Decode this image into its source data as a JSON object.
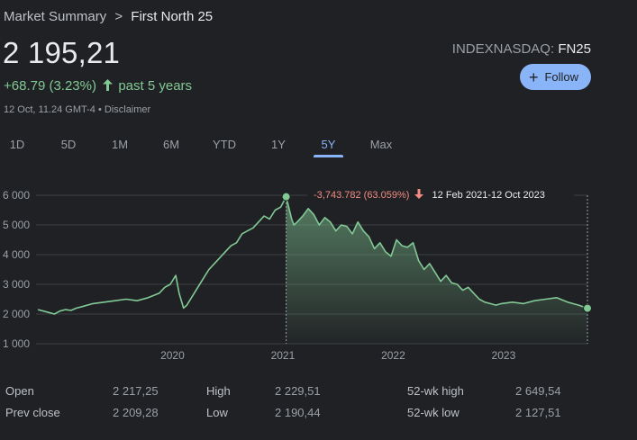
{
  "breadcrumb": {
    "parent": "Market Summary",
    "separator": ">",
    "current": "First North 25"
  },
  "quote": {
    "price": "2 195,21",
    "change": "+68.79 (3.23%)",
    "period": "past 5 years",
    "timestamp": "12 Oct, 11.24 GMT-4 • Disclaimer",
    "exchange": "INDEXNASDAQ:",
    "symbol": "FN25",
    "follow_label": "Follow"
  },
  "tabs": [
    {
      "label": "1D",
      "active": false
    },
    {
      "label": "5D",
      "active": false
    },
    {
      "label": "1M",
      "active": false
    },
    {
      "label": "6M",
      "active": false
    },
    {
      "label": "YTD",
      "active": false
    },
    {
      "label": "1Y",
      "active": false
    },
    {
      "label": "5Y",
      "active": true
    },
    {
      "label": "Max",
      "active": false
    }
  ],
  "tooltip": {
    "change": "-3,743.782 (63.059%)",
    "range": "12 Feb 2021-12 Oct 2023"
  },
  "stats": {
    "open_label": "Open",
    "open": "2 217,25",
    "high_label": "High",
    "high": "2 229,51",
    "wk52_high_label": "52-wk high",
    "wk52_high": "2 649,54",
    "prev_close_label": "Prev close",
    "prev_close": "2 209,28",
    "low_label": "Low",
    "low": "2 190,44",
    "wk52_low_label": "52-wk low",
    "wk52_low": "2 127,51"
  },
  "colors": {
    "positive": "#81c995",
    "negative": "#f28b82",
    "accent": "#8ab4f8",
    "background": "#202124"
  },
  "icons": {
    "up_arrow": "arrow-up-icon",
    "down_arrow": "arrow-down-icon",
    "plus": "plus-icon"
  },
  "chart_data": {
    "type": "line",
    "y_ticks": [
      "6 000",
      "5 000",
      "4 000",
      "3 000",
      "2 000",
      "1 000"
    ],
    "x_ticks": [
      "2020",
      "2021",
      "2022",
      "2023"
    ],
    "ylim": [
      1000,
      6000
    ],
    "grid": true,
    "x": [
      2018.8,
      2018.85,
      2018.9,
      2018.95,
      2019.0,
      2019.05,
      2019.1,
      2019.15,
      2019.2,
      2019.3,
      2019.4,
      2019.5,
      2019.6,
      2019.7,
      2019.8,
      2019.9,
      2019.95,
      2020.0,
      2020.05,
      2020.08,
      2020.12,
      2020.15,
      2020.2,
      2020.25,
      2020.3,
      2020.35,
      2020.4,
      2020.45,
      2020.5,
      2020.55,
      2020.6,
      2020.65,
      2020.7,
      2020.75,
      2020.8,
      2020.85,
      2020.9,
      2020.95,
      2021.0,
      2021.05,
      2021.1,
      2021.12,
      2021.15,
      2021.2,
      2021.25,
      2021.3,
      2021.35,
      2021.4,
      2021.45,
      2021.5,
      2021.55,
      2021.6,
      2021.65,
      2021.7,
      2021.75,
      2021.8,
      2021.85,
      2021.9,
      2021.95,
      2022.0,
      2022.05,
      2022.1,
      2022.15,
      2022.2,
      2022.25,
      2022.3,
      2022.35,
      2022.4,
      2022.45,
      2022.5,
      2022.55,
      2022.6,
      2022.65,
      2022.7,
      2022.75,
      2022.8,
      2022.85,
      2022.9,
      2022.95,
      2023.0,
      2023.1,
      2023.2,
      2023.3,
      2023.4,
      2023.5,
      2023.6,
      2023.7,
      2023.78
    ],
    "y": [
      2150,
      2100,
      2050,
      2000,
      2100,
      2150,
      2120,
      2200,
      2250,
      2350,
      2400,
      2450,
      2500,
      2450,
      2550,
      2700,
      2900,
      3000,
      3300,
      2700,
      2200,
      2300,
      2600,
      2900,
      3200,
      3500,
      3700,
      3900,
      4100,
      4300,
      4400,
      4700,
      4800,
      4900,
      5100,
      5300,
      5200,
      5500,
      5600,
      5950,
      5200,
      5000,
      5100,
      5300,
      5550,
      5350,
      5000,
      5250,
      5100,
      4800,
      5000,
      4950,
      4700,
      5100,
      4800,
      4600,
      4200,
      4400,
      4100,
      3950,
      4500,
      4300,
      4250,
      4400,
      3800,
      3500,
      3700,
      3400,
      3100,
      3300,
      3050,
      3000,
      2800,
      2900,
      2700,
      2500,
      2400,
      2350,
      2300,
      2350,
      2400,
      2350,
      2450,
      2500,
      2550,
      2400,
      2300,
      2195
    ]
  }
}
